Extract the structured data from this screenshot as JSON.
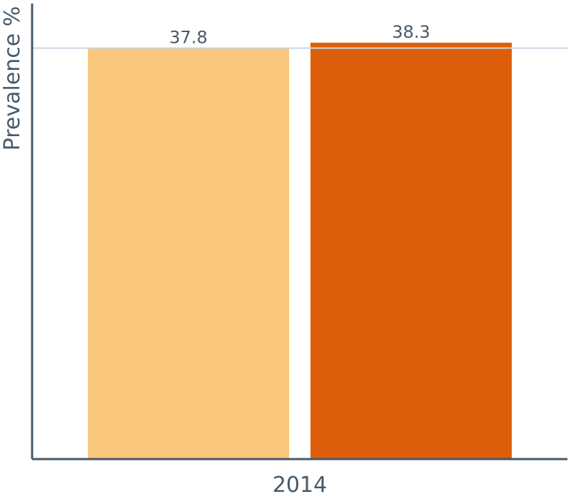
{
  "chart_data": {
    "type": "bar",
    "categories": [
      "2014"
    ],
    "series": [
      {
        "values": [
          37.8
        ],
        "color": "#f9c87c"
      },
      {
        "values": [
          38.3
        ],
        "color": "#dd5e0a"
      }
    ],
    "xlabel": "",
    "ylabel": "Prevalence %",
    "ylim": [
      0,
      41.9
    ],
    "reference_line": 37.8,
    "grid": false,
    "legend": "none",
    "axis_color": "#455a6b",
    "reference_color": "#c9d6e3"
  }
}
